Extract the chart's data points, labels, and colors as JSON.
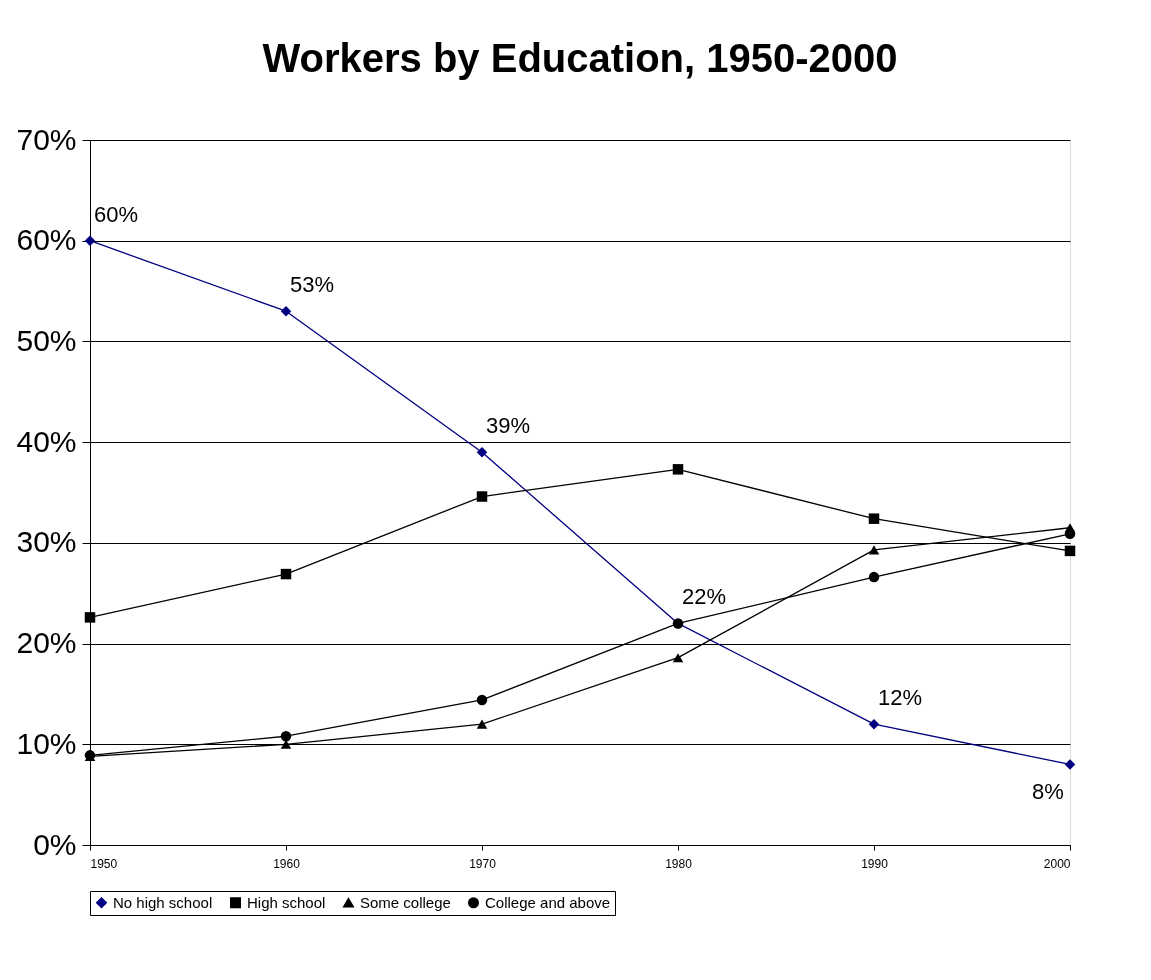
{
  "chart_data": {
    "type": "line",
    "title": "Workers by Education, 1950-2000",
    "x": [
      1950,
      1960,
      1970,
      1980,
      1990,
      2000
    ],
    "xlim": [
      1950,
      2000
    ],
    "xticks": [
      1950,
      1960,
      1970,
      1980,
      1990,
      2000
    ],
    "ylim": [
      0,
      70
    ],
    "yticks": [
      {
        "value": 0,
        "label": "0%"
      },
      {
        "value": 10,
        "label": "10%"
      },
      {
        "value": 20,
        "label": "20%"
      },
      {
        "value": 30,
        "label": "30%"
      },
      {
        "value": 40,
        "label": "40%"
      },
      {
        "value": 50,
        "label": "50%"
      },
      {
        "value": 60,
        "label": "60%"
      },
      {
        "value": 70,
        "label": "70%"
      }
    ],
    "grid": "y",
    "legend": "bottom",
    "line_style": "solid",
    "series": [
      {
        "name": "No high school",
        "color": "#000080",
        "marker": "diamond",
        "values": [
          60,
          53,
          39,
          22,
          12,
          8
        ],
        "value_labels": [
          "60%",
          "53%",
          "39%",
          "22%",
          "12%",
          "8%"
        ]
      },
      {
        "name": "High school",
        "color": "#000000",
        "marker": "square",
        "values": [
          22.6,
          26.9,
          34.6,
          37.3,
          32.4,
          29.2
        ]
      },
      {
        "name": "Some college",
        "color": "#000000",
        "marker": "triangle",
        "values": [
          8.8,
          10.0,
          12.0,
          18.6,
          29.3,
          31.5
        ]
      },
      {
        "name": "College and above",
        "color": "#000000",
        "marker": "circle",
        "values": [
          8.9,
          10.8,
          14.4,
          22.0,
          26.6,
          30.9
        ]
      }
    ]
  }
}
